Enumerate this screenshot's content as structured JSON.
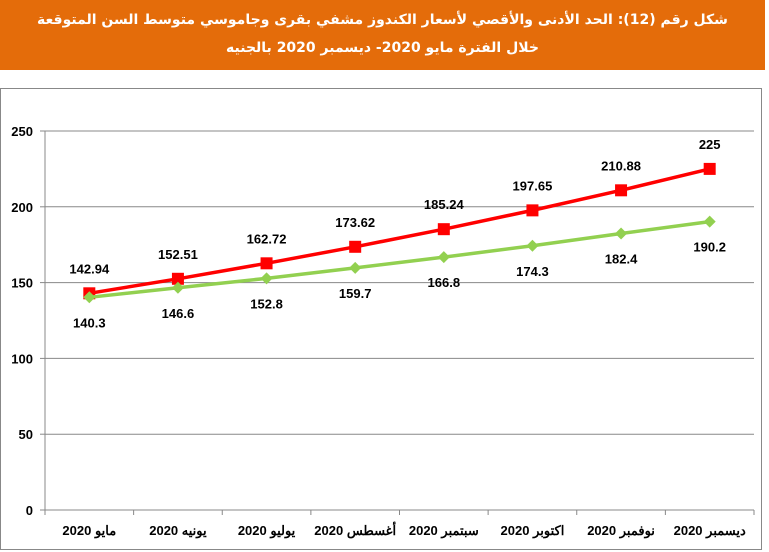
{
  "chart_data": {
    "type": "line",
    "title": [
      "شكل رقم (12): الحد الأدنى والأقصي لأسعار الكندوز مشفي  بقرى وجاموسي متوسط السن المتوقعة",
      "خلال الفترة مايو 2020- ديسمبر 2020 بالجنيه"
    ],
    "categories": [
      "مايو 2020",
      "يونيه 2020",
      "يوليو 2020",
      "أغسطس 2020",
      "سبتمبر 2020",
      "اكتوبر 2020",
      "نوفمبر 2020",
      "ديسمبر 2020"
    ],
    "series": [
      {
        "values": [
          142.94,
          152.51,
          162.72,
          173.62,
          185.24,
          197.65,
          210.88,
          225
        ],
        "labels": [
          "142.94",
          "152.51",
          "162.72",
          "173.62",
          "185.24",
          "197.65",
          "210.88",
          "225"
        ],
        "color": "#FF0000",
        "marker": "square"
      },
      {
        "values": [
          140.3,
          146.6,
          152.8,
          159.7,
          166.8,
          174.3,
          182.4,
          190.2
        ],
        "labels": [
          "140.3",
          "146.6",
          "152.8",
          "159.7",
          "166.8",
          "174.3",
          "182.4",
          "190.2"
        ],
        "color": "#92D050",
        "marker": "diamond"
      }
    ],
    "ylim": [
      0,
      250
    ],
    "yticks": [
      "0",
      "50",
      "100",
      "150",
      "200",
      "250"
    ],
    "grid": true
  }
}
